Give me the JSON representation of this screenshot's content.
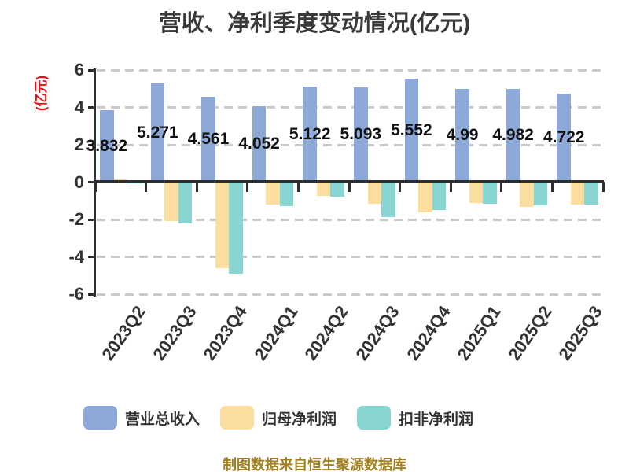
{
  "title": "营收、净利季度变动情况(亿元)",
  "caption": "制图数据来自恒生聚源数据库",
  "colors": {
    "revenue_blue": "#8DA9D7",
    "net_profit_yellow": "#FADD9F",
    "deducted_profit_cyan": "#89D5D1",
    "axis": "#2e2e2e",
    "grid": "#cbcbcb",
    "title_text": "#3a3a3a",
    "tick_text": "#333333",
    "ylabel_red": "#ee1111",
    "caption_gold": "#a1801f"
  },
  "chart_data": {
    "type": "bar",
    "title": "营收、净利季度变动情况(亿元)",
    "ylabel": "(亿元)",
    "xlabel": "",
    "ylim": [
      -6,
      6
    ],
    "yticks": [
      6,
      4,
      2,
      0,
      -2,
      -4,
      -6
    ],
    "grid": "horizontal dashed, no gridline at 0",
    "legend_position": "bottom",
    "categories": [
      "2023Q2",
      "2023Q3",
      "2023Q4",
      "2024Q1",
      "2024Q2",
      "2024Q3",
      "2024Q4",
      "2025Q1",
      "2025Q2",
      "2025Q3"
    ],
    "series": [
      {
        "name": "营业总收入",
        "color": "#8DA9D7",
        "values": [
          3.832,
          5.271,
          4.561,
          4.052,
          5.122,
          5.093,
          5.552,
          4.99,
          4.982,
          4.722
        ],
        "labels": [
          "3.832",
          "5.271",
          "4.561",
          "4.052",
          "5.122",
          "5.093",
          "5.552",
          "4.99",
          "4.982",
          "4.722"
        ]
      },
      {
        "name": "归母净利润",
        "color": "#FADD9F",
        "values": [
          0.15,
          -2.09,
          -4.63,
          -1.2,
          -0.74,
          -1.17,
          -1.61,
          -1.1,
          -1.33,
          -1.21
        ]
      },
      {
        "name": "扣非净利润",
        "color": "#89D5D1",
        "values": [
          -0.07,
          -2.2,
          -4.89,
          -1.3,
          -0.78,
          -1.86,
          -1.5,
          -1.17,
          -1.26,
          -1.21
        ]
      }
    ],
    "value_labels_for_series": "营业总收入",
    "source_note": "制图数据来自恒生聚源数据库"
  }
}
